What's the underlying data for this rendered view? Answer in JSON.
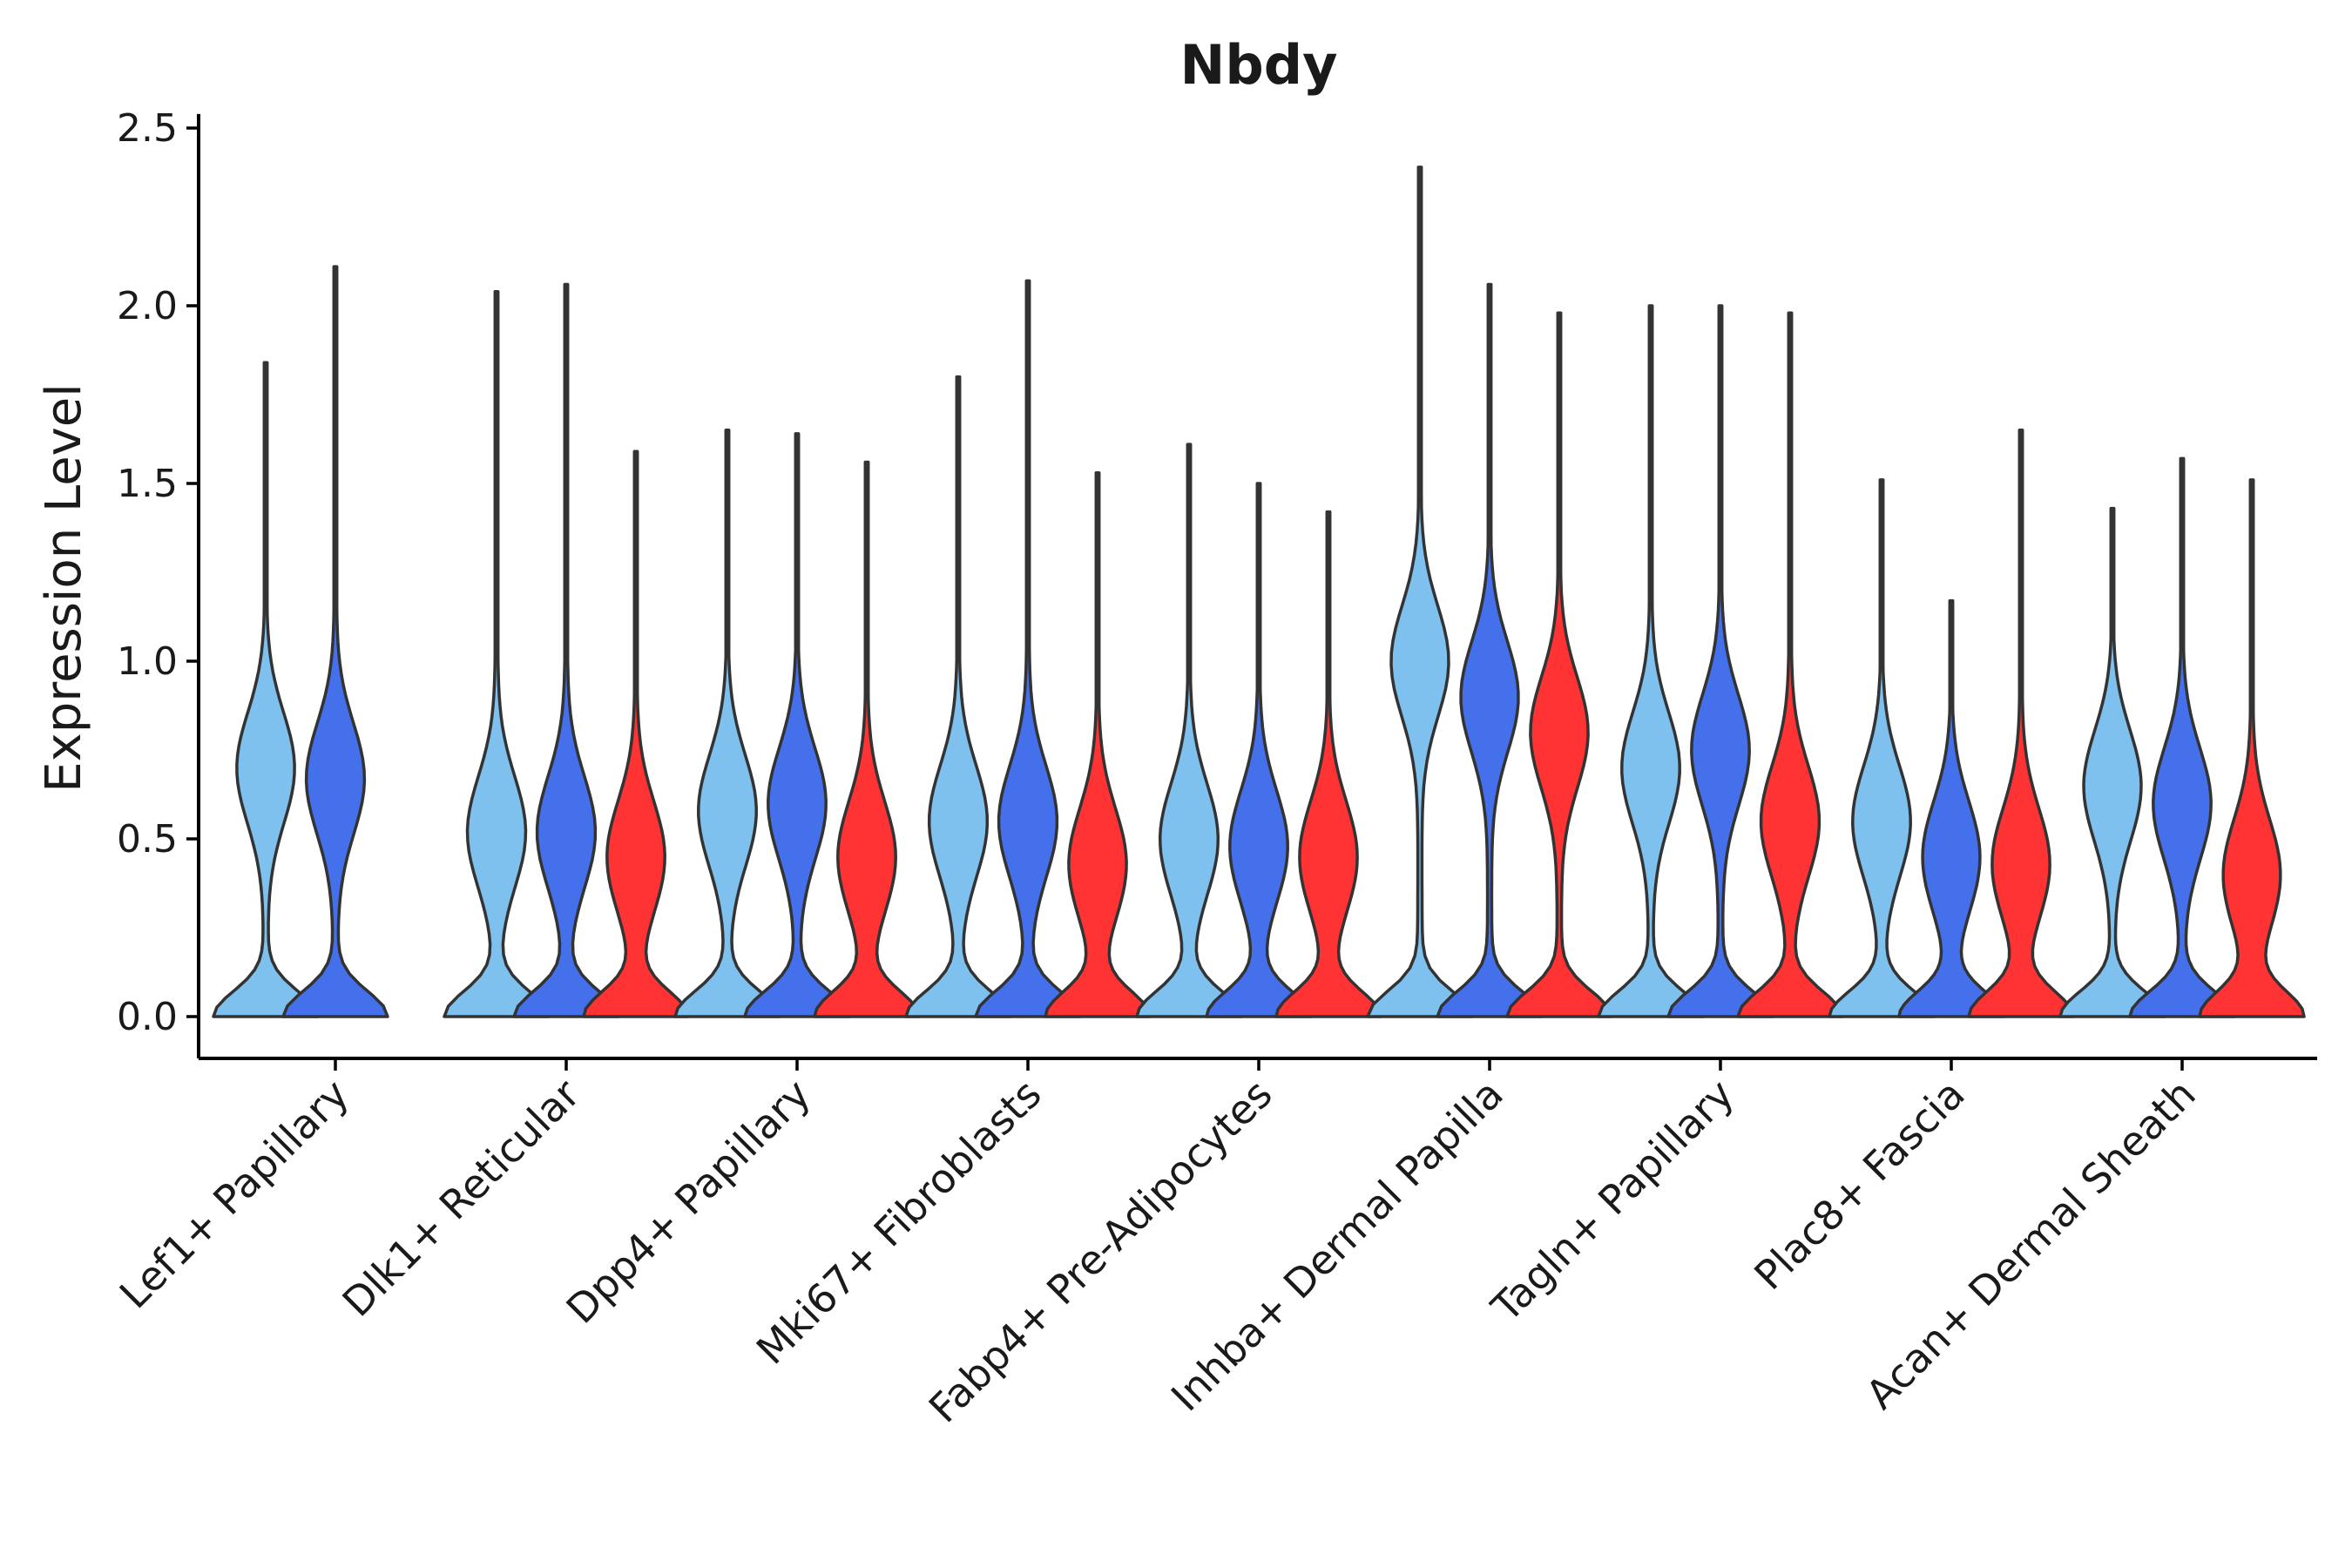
{
  "chart_data": {
    "type": "violin",
    "title": "Nbdy",
    "xlabel": "",
    "ylabel": "Expression Level",
    "ylim": [
      -0.12,
      2.52
    ],
    "yticks": [
      0.0,
      0.5,
      1.0,
      1.5,
      2.0,
      2.5
    ],
    "ytick_labels": [
      "0.0",
      "0.5",
      "1.0",
      "1.5",
      "2.0",
      "2.5"
    ],
    "grid": false,
    "legend": "none",
    "series_colors": [
      "#7ec0ee",
      "#4470ec",
      "#ff3333"
    ],
    "categories": [
      "Lef1+ Papillary",
      "Dlk1+ Reticular",
      "Dpp4+ Papillary",
      "Mki67+ Fibroblasts",
      "Fabp4+ Pre-Adipocytes",
      "Inhba+ Dermal Papilla",
      "Tagln+ Papillary",
      "Plac8+ Fascia",
      "Acan+ Dermal Sheath"
    ],
    "groups": [
      {
        "category": "Lef1+ Papillary",
        "violins": [
          {
            "series": 0,
            "max": 1.84,
            "mode": 0.7
          },
          {
            "series": 1,
            "max": 2.11,
            "mode": 0.67
          }
        ]
      },
      {
        "category": "Dlk1+ Reticular",
        "violins": [
          {
            "series": 0,
            "max": 2.04,
            "mode": 0.52
          },
          {
            "series": 1,
            "max": 2.06,
            "mode": 0.52
          },
          {
            "series": 2,
            "max": 1.59,
            "mode": 0.45
          }
        ]
      },
      {
        "category": "Dpp4+ Papillary",
        "violins": [
          {
            "series": 0,
            "max": 1.65,
            "mode": 0.58
          },
          {
            "series": 1,
            "max": 1.64,
            "mode": 0.6
          },
          {
            "series": 2,
            "max": 1.56,
            "mode": 0.45
          }
        ]
      },
      {
        "category": "Mki67+ Fibroblasts",
        "violins": [
          {
            "series": 0,
            "max": 1.8,
            "mode": 0.55
          },
          {
            "series": 1,
            "max": 2.07,
            "mode": 0.55
          },
          {
            "series": 2,
            "max": 1.53,
            "mode": 0.43
          }
        ]
      },
      {
        "category": "Fabp4+ Pre-Adipocytes",
        "violins": [
          {
            "series": 0,
            "max": 1.61,
            "mode": 0.5
          },
          {
            "series": 1,
            "max": 1.5,
            "mode": 0.48
          },
          {
            "series": 2,
            "max": 1.42,
            "mode": 0.45
          }
        ]
      },
      {
        "category": "Inhba+ Dermal Papilla",
        "violins": [
          {
            "series": 0,
            "max": 2.39,
            "mode": 1.0
          },
          {
            "series": 1,
            "max": 2.06,
            "mode": 0.9
          },
          {
            "series": 2,
            "max": 1.98,
            "mode": 0.8
          }
        ]
      },
      {
        "category": "Tagln+ Papillary",
        "violins": [
          {
            "series": 0,
            "max": 2.0,
            "mode": 0.7
          },
          {
            "series": 1,
            "max": 2.0,
            "mode": 0.75
          },
          {
            "series": 2,
            "max": 1.98,
            "mode": 0.55
          }
        ]
      },
      {
        "category": "Plac8+ Fascia",
        "violins": [
          {
            "series": 0,
            "max": 1.51,
            "mode": 0.55
          },
          {
            "series": 1,
            "max": 1.17,
            "mode": 0.45
          },
          {
            "series": 2,
            "max": 1.65,
            "mode": 0.43
          }
        ]
      },
      {
        "category": "Acan+ Dermal Sheath",
        "violins": [
          {
            "series": 0,
            "max": 1.43,
            "mode": 0.65
          },
          {
            "series": 1,
            "max": 1.57,
            "mode": 0.6
          },
          {
            "series": 2,
            "max": 1.51,
            "mode": 0.4
          }
        ]
      }
    ]
  }
}
